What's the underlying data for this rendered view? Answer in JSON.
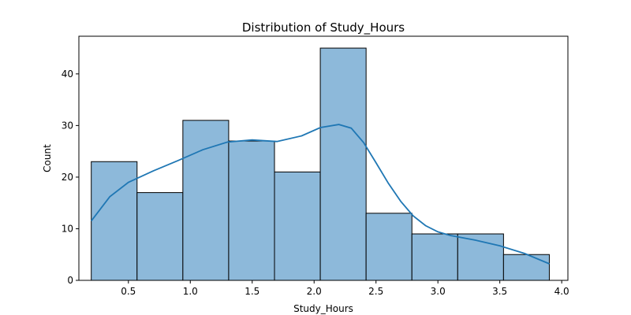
{
  "chart_data": {
    "type": "bar",
    "title": "Distribution of Study_Hours",
    "xlabel": "Study_Hours",
    "ylabel": "Count",
    "xlim": [
      0.1,
      4.05
    ],
    "ylim": [
      0,
      47.3
    ],
    "bins": [
      {
        "start": 0.2,
        "end": 0.57,
        "count": 23
      },
      {
        "start": 0.57,
        "end": 0.94,
        "count": 17
      },
      {
        "start": 0.94,
        "end": 1.31,
        "count": 31
      },
      {
        "start": 1.31,
        "end": 1.68,
        "count": 27
      },
      {
        "start": 1.68,
        "end": 2.05,
        "count": 21
      },
      {
        "start": 2.05,
        "end": 2.42,
        "count": 45
      },
      {
        "start": 2.42,
        "end": 2.79,
        "count": 13
      },
      {
        "start": 2.79,
        "end": 3.16,
        "count": 9
      },
      {
        "start": 3.16,
        "end": 3.53,
        "count": 9
      },
      {
        "start": 3.53,
        "end": 3.9,
        "count": 5
      }
    ],
    "kde": {
      "x": [
        0.2,
        0.35,
        0.5,
        0.7,
        0.9,
        1.1,
        1.3,
        1.5,
        1.7,
        1.9,
        2.05,
        2.2,
        2.3,
        2.4,
        2.5,
        2.6,
        2.7,
        2.8,
        2.9,
        3.0,
        3.1,
        3.3,
        3.5,
        3.7,
        3.9
      ],
      "y": [
        11.5,
        16.2,
        19.0,
        21.2,
        23.2,
        25.3,
        26.8,
        27.2,
        26.9,
        28.0,
        29.6,
        30.2,
        29.5,
        26.7,
        22.8,
        18.8,
        15.3,
        12.5,
        10.6,
        9.4,
        8.7,
        7.8,
        6.7,
        5.2,
        3.2
      ]
    },
    "xticks": [
      0.5,
      1.0,
      1.5,
      2.0,
      2.5,
      3.0,
      3.5,
      4.0
    ],
    "xtick_labels": [
      "0.5",
      "1.0",
      "1.5",
      "2.0",
      "2.5",
      "3.0",
      "3.5",
      "4.0"
    ],
    "yticks": [
      0,
      10,
      20,
      30,
      40
    ],
    "ytick_labels": [
      "0",
      "10",
      "20",
      "30",
      "40"
    ],
    "grid": false,
    "colors": {
      "bar_fill": "#8db9da",
      "line": "#1f77b4"
    }
  }
}
